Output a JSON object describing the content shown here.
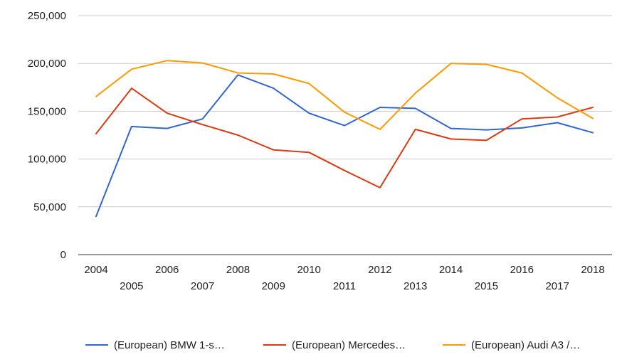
{
  "chart_data": {
    "type": "line",
    "title": "",
    "xlabel": "",
    "ylabel": "",
    "x": [
      "2004",
      "2005",
      "2006",
      "2007",
      "2008",
      "2009",
      "2010",
      "2011",
      "2012",
      "2013",
      "2014",
      "2015",
      "2016",
      "2017",
      "2018"
    ],
    "ylim": [
      0,
      250000
    ],
    "yticks": [
      0,
      50000,
      100000,
      150000,
      200000,
      250000
    ],
    "ytick_labels": [
      "0",
      "50,000",
      "100,000",
      "150,000",
      "200,000",
      "250,000"
    ],
    "grid": true,
    "legend_position": "bottom",
    "series": [
      {
        "name": "(European) BMW 1-s…",
        "color": "#3366cc",
        "values": [
          40000,
          134000,
          132000,
          142000,
          188000,
          174000,
          148000,
          135000,
          154000,
          153000,
          132000,
          130500,
          132500,
          138000,
          127500
        ]
      },
      {
        "name": "(European) Mercedes…",
        "color": "#dc3912",
        "values": [
          126500,
          174000,
          148000,
          136000,
          125000,
          109500,
          107000,
          88000,
          70000,
          131000,
          121000,
          119500,
          142000,
          144000,
          154000
        ]
      },
      {
        "name": "(European) Audi A3 /…",
        "color": "#ff9900",
        "values": [
          165500,
          194000,
          203000,
          200500,
          190000,
          189000,
          179000,
          149000,
          131000,
          169000,
          200000,
          199000,
          190000,
          164000,
          142500
        ]
      }
    ]
  }
}
